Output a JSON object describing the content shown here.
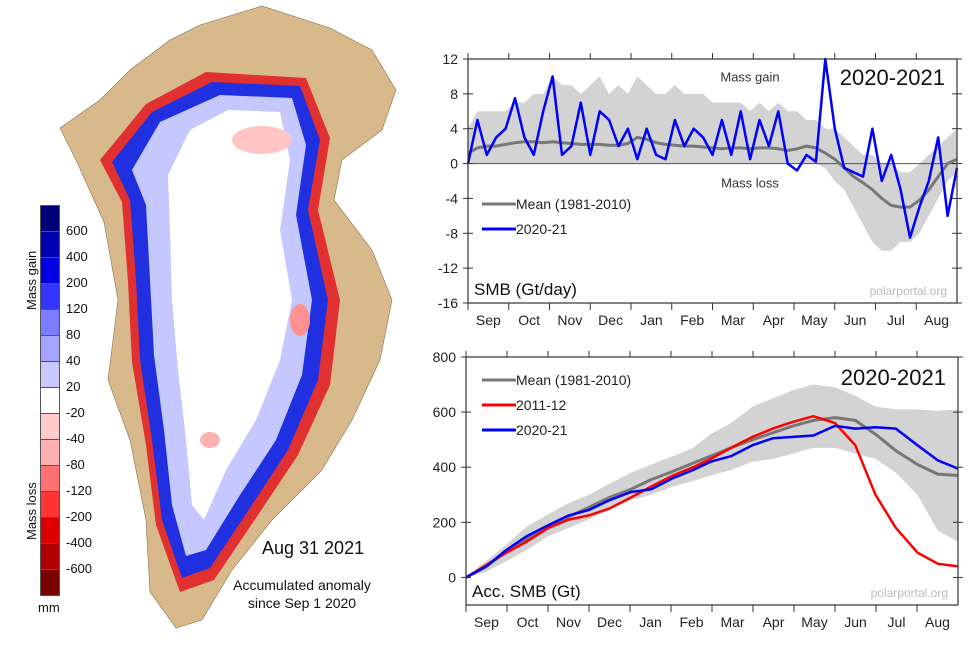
{
  "map": {
    "date": "Aug 31 2021",
    "caption_line1": "Accumulated anomaly",
    "caption_line2": "since Sep 1 2020",
    "colorbar": {
      "gain_label": "Mass gain",
      "loss_label": "Mass loss",
      "unit": "mm",
      "tick_labels": [
        "600",
        "400",
        "200",
        "120",
        "80",
        "40",
        "20",
        "-20",
        "-40",
        "-80",
        "-120",
        "-200",
        "-400",
        "-600"
      ],
      "colors": [
        "#00007a",
        "#0000b0",
        "#0000e0",
        "#3434ff",
        "#7c7cff",
        "#a4a4ff",
        "#c8c8ff",
        "#ffffff",
        "#ffcaca",
        "#ffb0b0",
        "#ff7070",
        "#ff3434",
        "#dd0000",
        "#b00000",
        "#7a0000"
      ]
    },
    "land_color": "#d8b98c"
  },
  "chart_data": [
    {
      "type": "line",
      "title": "2020-2021",
      "ylabel": "SMB (Gt/day)",
      "annotation_gain": "Mass gain",
      "annotation_loss": "Mass loss",
      "watermark": "polarportal.org",
      "ylim": [
        -16,
        12
      ],
      "yticks": [
        "12",
        "8",
        "4",
        "0",
        "-4",
        "-8",
        "-12",
        "-16"
      ],
      "month_labels": [
        "Sep",
        "Oct",
        "Nov",
        "Dec",
        "Jan",
        "Feb",
        "Mar",
        "Apr",
        "May",
        "Jun",
        "Jul",
        "Aug"
      ],
      "xlim": [
        "2020-09-01",
        "2021-08-31"
      ],
      "legend": "top-left",
      "x": [
        "2020-09-01",
        "2020-09-08",
        "2020-09-15",
        "2020-09-22",
        "2020-09-29",
        "2020-10-06",
        "2020-10-13",
        "2020-10-20",
        "2020-10-27",
        "2020-11-03",
        "2020-11-10",
        "2020-11-17",
        "2020-11-24",
        "2020-12-01",
        "2020-12-08",
        "2020-12-15",
        "2020-12-22",
        "2020-12-29",
        "2021-01-05",
        "2021-01-12",
        "2021-01-19",
        "2021-01-26",
        "2021-02-02",
        "2021-02-09",
        "2021-02-16",
        "2021-02-23",
        "2021-03-02",
        "2021-03-09",
        "2021-03-16",
        "2021-03-23",
        "2021-03-30",
        "2021-04-06",
        "2021-04-13",
        "2021-04-20",
        "2021-04-27",
        "2021-05-04",
        "2021-05-11",
        "2021-05-18",
        "2021-05-25",
        "2021-06-01",
        "2021-06-08",
        "2021-06-15",
        "2021-06-22",
        "2021-06-29",
        "2021-07-06",
        "2021-07-13",
        "2021-07-20",
        "2021-07-27",
        "2021-08-03",
        "2021-08-10",
        "2021-08-17",
        "2021-08-24",
        "2021-08-31"
      ],
      "band": {
        "color": "#d3d3d3",
        "upper": [
          4,
          6,
          6,
          6,
          6,
          7,
          7,
          8,
          8,
          10,
          9,
          9,
          8,
          9,
          10,
          8,
          9,
          8,
          10,
          9,
          8,
          8,
          9,
          8,
          8,
          8,
          7,
          7,
          7,
          7,
          6,
          7,
          6,
          7,
          6,
          6,
          5,
          5,
          4,
          4,
          3,
          2,
          1,
          1,
          0,
          0,
          -1,
          -1,
          0,
          1,
          2,
          3,
          4
        ],
        "lower": [
          0,
          0,
          0,
          0,
          0,
          0,
          0,
          0,
          0,
          0,
          0,
          0,
          0,
          0,
          0,
          0,
          0,
          0,
          0,
          0,
          0,
          0,
          0,
          0,
          0,
          0,
          0,
          0,
          0,
          0,
          0,
          0,
          0,
          0,
          0,
          0,
          0,
          0,
          -0.5,
          -2,
          -3,
          -5,
          -7,
          -9,
          -10,
          -10,
          -9,
          -9,
          -8,
          -6,
          -4,
          -2,
          -1
        ]
      },
      "series": [
        {
          "name": "Mean (1981-2010)",
          "color": "#777777",
          "values": [
            1.2,
            1.8,
            2,
            2,
            2.2,
            2.4,
            2.5,
            2.5,
            2.4,
            2.5,
            2.4,
            2.3,
            2.2,
            2.2,
            2.2,
            2.1,
            2.1,
            2.3,
            3,
            2.8,
            2.4,
            2.2,
            2.1,
            2,
            2,
            1.9,
            1.8,
            1.7,
            1.8,
            1.8,
            1.7,
            1.8,
            1.8,
            1.7,
            1.5,
            1.7,
            2,
            1.8,
            1.2,
            0.5,
            -0.5,
            -1.5,
            -2.2,
            -3,
            -4,
            -4.8,
            -5,
            -5,
            -4.2,
            -3,
            -1.5,
            0,
            0.5
          ]
        },
        {
          "name": "2020-21",
          "color": "#0000ff",
          "values": [
            0,
            5,
            1,
            3,
            4,
            7.5,
            3,
            1,
            6,
            10,
            1,
            2,
            7,
            1,
            6,
            5,
            2,
            4,
            0.5,
            4,
            1,
            0.5,
            5,
            2,
            4,
            3,
            1,
            5,
            1,
            6,
            0.5,
            5,
            2,
            6,
            0,
            -0.8,
            1,
            0.2,
            12,
            4,
            -0.5,
            -1,
            -1.5,
            4,
            -2,
            1,
            -3,
            -8.5,
            -5,
            -2,
            3,
            -6,
            -0.5
          ]
        }
      ]
    },
    {
      "type": "line",
      "title": "2020-2021",
      "ylabel": "Acc. SMB (Gt)",
      "watermark": "polarportal.org",
      "ylim": [
        -100,
        800
      ],
      "yticks": [
        "800",
        "600",
        "400",
        "200",
        "0"
      ],
      "month_labels": [
        "Sep",
        "Oct",
        "Nov",
        "Dec",
        "Jan",
        "Feb",
        "Mar",
        "Apr",
        "May",
        "Jun",
        "Jul",
        "Aug"
      ],
      "xlim": [
        "2020-09-01",
        "2021-08-31"
      ],
      "legend": "top-left",
      "x": [
        "2020-09-01",
        "2020-09-16",
        "2020-10-01",
        "2020-10-16",
        "2020-11-01",
        "2020-11-16",
        "2020-12-01",
        "2020-12-16",
        "2021-01-01",
        "2021-01-16",
        "2021-02-01",
        "2021-02-16",
        "2021-03-01",
        "2021-03-16",
        "2021-04-01",
        "2021-04-16",
        "2021-05-01",
        "2021-05-16",
        "2021-06-01",
        "2021-06-16",
        "2021-07-01",
        "2021-07-16",
        "2021-08-01",
        "2021-08-16",
        "2021-08-31"
      ],
      "band": {
        "color": "#d3d3d3",
        "upper": [
          0,
          60,
          120,
          185,
          230,
          270,
          300,
          340,
          380,
          410,
          440,
          470,
          520,
          560,
          620,
          650,
          680,
          700,
          690,
          660,
          620,
          610,
          610,
          605,
          610
        ],
        "lower": [
          0,
          20,
          60,
          100,
          150,
          180,
          210,
          250,
          280,
          300,
          330,
          350,
          370,
          390,
          420,
          430,
          450,
          470,
          470,
          450,
          430,
          380,
          300,
          170,
          130
        ]
      },
      "series": [
        {
          "name": "Mean (1981-2010)",
          "color": "#777777",
          "values": [
            0,
            40,
            95,
            140,
            185,
            220,
            255,
            290,
            320,
            355,
            385,
            415,
            440,
            470,
            500,
            525,
            550,
            570,
            580,
            570,
            520,
            460,
            410,
            375,
            370
          ]
        },
        {
          "name": "2011-12",
          "color": "#ff0000",
          "values": [
            0,
            45,
            90,
            130,
            180,
            210,
            225,
            250,
            290,
            330,
            370,
            400,
            430,
            470,
            510,
            540,
            565,
            585,
            560,
            480,
            300,
            180,
            90,
            50,
            40
          ]
        },
        {
          "name": "2020-21",
          "color": "#0000ff",
          "values": [
            0,
            40,
            100,
            150,
            190,
            225,
            245,
            280,
            310,
            320,
            360,
            390,
            420,
            440,
            480,
            505,
            510,
            515,
            550,
            540,
            545,
            540,
            480,
            425,
            395
          ]
        }
      ]
    }
  ]
}
